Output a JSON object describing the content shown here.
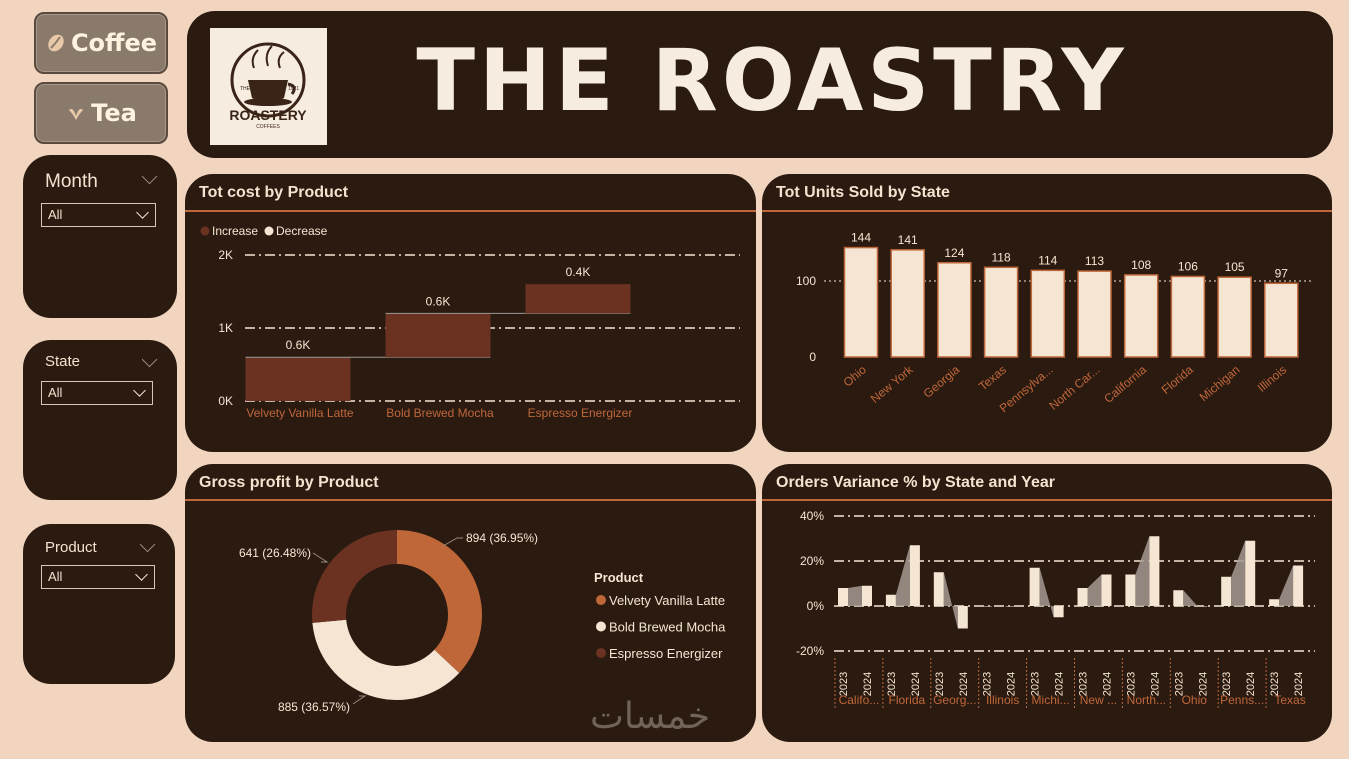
{
  "nav": {
    "coffee_label": "Coffee",
    "tea_label": "Tea"
  },
  "header": {
    "title": "THE ROASTRY",
    "logo_text": "ROASTERY",
    "logo_sub": "COFFEES",
    "logo_year_left": "THE",
    "logo_year_right": "1921"
  },
  "filters": [
    {
      "title": "Month",
      "value": "All"
    },
    {
      "title": "State",
      "value": "All"
    },
    {
      "title": "Product",
      "value": "All"
    }
  ],
  "colors": {
    "accent": "#c0673a",
    "dark_bg": "#2a1a10",
    "page_bg": "#f1d5bf",
    "cream": "#f5e6d3",
    "brown": "#6b3222"
  },
  "watermark": "خمسات",
  "charts": [
    {
      "title": "Tot cost by Product",
      "chart_data": {
        "type": "waterfall",
        "legend": [
          "Increase",
          "Decrease"
        ],
        "categories": [
          "Velvety Vanilla Latte",
          "Bold Brewed Mocha",
          "Espresso Energizer"
        ],
        "values": [
          0.6,
          0.6,
          0.4
        ],
        "value_labels": [
          "0.6K",
          "0.6K",
          "0.4K"
        ],
        "yticks": [
          "0K",
          "1K",
          "2K"
        ],
        "ylim": [
          0,
          2
        ]
      }
    },
    {
      "title": "Tot Units Sold by State",
      "chart_data": {
        "type": "bar",
        "categories": [
          "Ohio",
          "New York",
          "Georgia",
          "Texas",
          "Pennsylva...",
          "North Car...",
          "California",
          "Florida",
          "Michigan",
          "Illinois"
        ],
        "values": [
          144,
          141,
          124,
          118,
          114,
          113,
          108,
          106,
          105,
          97
        ],
        "yticks": [
          "0",
          "100"
        ],
        "ylim": [
          0,
          150
        ]
      }
    },
    {
      "title": "Gross profit by Product",
      "chart_data": {
        "type": "pie",
        "legend_title": "Product",
        "slices": [
          {
            "name": "Velvety Vanilla Latte",
            "value": 894,
            "label": "894 (36.95%)",
            "color": "#c0673a"
          },
          {
            "name": "Bold Brewed Mocha",
            "value": 885,
            "label": "885 (36.57%)",
            "color": "#f5e6d3"
          },
          {
            "name": "Espresso Energizer",
            "value": 641,
            "label": "641 (26.48%)",
            "color": "#6b3222"
          }
        ]
      }
    },
    {
      "title": "Orders Variance % by State and Year",
      "chart_data": {
        "type": "bar",
        "states": [
          "Califo...",
          "Florida",
          "Georg...",
          "Illinois",
          "Michi...",
          "New ...",
          "North...",
          "Ohio",
          "Penns...",
          "Texas"
        ],
        "years": [
          "2023",
          "2024"
        ],
        "values": [
          [
            8,
            9
          ],
          [
            5,
            27
          ],
          [
            15,
            -10
          ],
          [
            0,
            0
          ],
          [
            17,
            -5
          ],
          [
            8,
            14
          ],
          [
            14,
            31
          ],
          [
            7,
            0
          ],
          [
            13,
            29
          ],
          [
            3,
            18
          ]
        ],
        "yticks": [
          "-20%",
          "0%",
          "20%",
          "40%"
        ],
        "ylim": [
          -20,
          40
        ]
      }
    }
  ]
}
